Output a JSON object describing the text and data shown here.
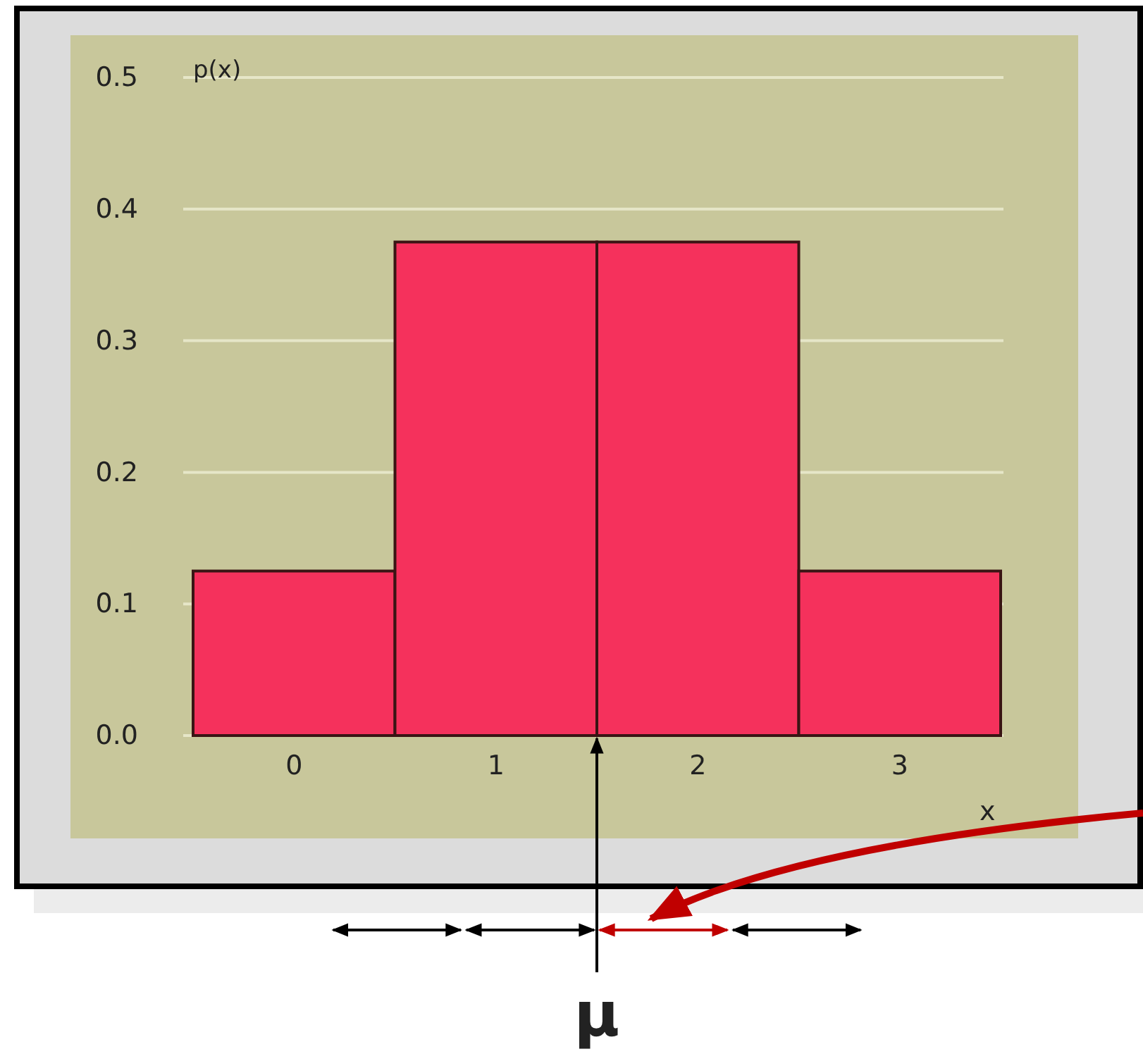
{
  "chart_data": {
    "type": "bar",
    "categories": [
      "0",
      "1",
      "2",
      "3"
    ],
    "values": [
      0.125,
      0.375,
      0.375,
      0.125
    ],
    "color": "#f5315c",
    "ylim": [
      0,
      0.5
    ],
    "yticks": [
      {
        "value": 0,
        "label": "0.0"
      },
      0.1,
      0.2,
      0.3,
      0.4,
      0.5
    ],
    "grid": "y",
    "ylabel": "p(x)",
    "xlabel": "x",
    "annotations": [
      "μ"
    ]
  }
}
